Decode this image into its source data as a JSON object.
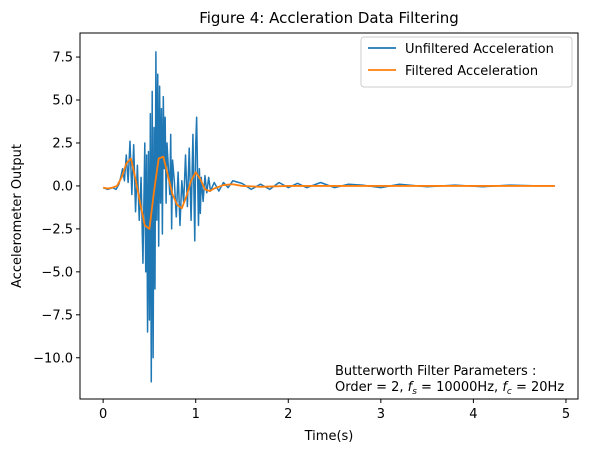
{
  "chart_data": {
    "type": "line",
    "title": "Figure 4: Accleration Data Filtering",
    "xlabel": "Time(s)",
    "ylabel": "Accelerometer Output",
    "xlim": [
      -0.25,
      5.13
    ],
    "ylim": [
      -12.4,
      8.9
    ],
    "xticks": [
      0,
      1,
      2,
      3,
      4,
      5
    ],
    "xtick_labels": [
      "0",
      "1",
      "2",
      "3",
      "4",
      "5"
    ],
    "yticks": [
      7.5,
      5.0,
      2.5,
      0.0,
      -2.5,
      -5.0,
      -7.5,
      -10.0
    ],
    "ytick_labels": [
      "7.5",
      "5.0",
      "2.5",
      "0.0",
      "−2.5",
      "−5.0",
      "−7.5",
      "−10.0"
    ],
    "grid": false,
    "legend_position": "top-right",
    "series": [
      {
        "name": "Unfiltered Acceleration",
        "color": "#1f77b4",
        "x": [
          0.0,
          0.05,
          0.1,
          0.14,
          0.17,
          0.19,
          0.21,
          0.23,
          0.25,
          0.27,
          0.29,
          0.31,
          0.33,
          0.35,
          0.37,
          0.39,
          0.41,
          0.43,
          0.45,
          0.46,
          0.47,
          0.48,
          0.49,
          0.5,
          0.51,
          0.52,
          0.53,
          0.54,
          0.55,
          0.56,
          0.57,
          0.58,
          0.59,
          0.6,
          0.61,
          0.62,
          0.63,
          0.64,
          0.65,
          0.66,
          0.67,
          0.68,
          0.69,
          0.7,
          0.71,
          0.72,
          0.73,
          0.74,
          0.75,
          0.77,
          0.79,
          0.81,
          0.83,
          0.85,
          0.87,
          0.89,
          0.91,
          0.93,
          0.95,
          0.97,
          0.99,
          1.0,
          1.01,
          1.02,
          1.03,
          1.04,
          1.05,
          1.06,
          1.08,
          1.1,
          1.12,
          1.14,
          1.16,
          1.2,
          1.25,
          1.3,
          1.35,
          1.4,
          1.5,
          1.6,
          1.7,
          1.8,
          1.9,
          2.0,
          2.1,
          2.2,
          2.35,
          2.5,
          2.65,
          2.8,
          3.0,
          3.2,
          3.5,
          3.8,
          4.1,
          4.4,
          4.7,
          4.88
        ],
        "y": [
          -0.1,
          -0.2,
          -0.1,
          -0.2,
          0.1,
          0.5,
          1.0,
          0.3,
          1.8,
          0.2,
          2.6,
          -0.5,
          2.4,
          -1.5,
          1.2,
          -2.0,
          0.5,
          -4.5,
          2.5,
          -5.0,
          1.8,
          -8.5,
          2.0,
          -7.8,
          4.2,
          -11.4,
          5.5,
          -10.0,
          3.4,
          -6.0,
          7.8,
          -2.0,
          6.5,
          -3.5,
          5.8,
          -1.0,
          4.5,
          -2.8,
          5.2,
          1.0,
          4.0,
          -1.0,
          2.5,
          1.5,
          0.5,
          -0.5,
          3.0,
          -2.5,
          1.5,
          0.2,
          -1.8,
          0.8,
          -2.3,
          0.3,
          -1.0,
          1.8,
          -1.2,
          2.2,
          -2.0,
          3.0,
          -3.2,
          2.4,
          4.0,
          0.8,
          -2.3,
          1.0,
          -1.6,
          0.5,
          -0.9,
          0.6,
          -0.4,
          0.5,
          -0.3,
          0.2,
          -0.3,
          0.2,
          -0.1,
          0.3,
          0.15,
          -0.2,
          0.1,
          -0.2,
          0.2,
          -0.1,
          0.15,
          -0.1,
          0.2,
          -0.1,
          0.1,
          0.05,
          -0.1,
          0.1,
          -0.05,
          0.05,
          -0.05,
          0.05,
          0.0,
          0.0
        ]
      },
      {
        "name": "Filtered Acceleration",
        "color": "#ff7f0e",
        "x": [
          0.0,
          0.05,
          0.1,
          0.15,
          0.2,
          0.25,
          0.3,
          0.35,
          0.4,
          0.45,
          0.5,
          0.55,
          0.6,
          0.65,
          0.7,
          0.75,
          0.8,
          0.85,
          0.9,
          0.95,
          1.0,
          1.05,
          1.1,
          1.15,
          1.2,
          1.3,
          1.4,
          1.5,
          1.7,
          2.0,
          3.0,
          4.0,
          4.88
        ],
        "y": [
          -0.1,
          -0.15,
          -0.1,
          0.0,
          0.5,
          1.3,
          1.6,
          0.4,
          -1.0,
          -2.3,
          -2.5,
          -0.3,
          1.6,
          1.7,
          0.6,
          -0.5,
          -1.1,
          -1.3,
          -0.6,
          0.3,
          0.8,
          0.4,
          -0.2,
          -0.3,
          -0.15,
          0.05,
          0.1,
          0.0,
          -0.05,
          0.0,
          0.0,
          0.0,
          0.0
        ]
      }
    ],
    "annotation": {
      "line1": "Butterworth Filter Parameters :",
      "line2_prefix": "Order = 2, ",
      "fs_symbol": "f",
      "fs_sub": "s",
      "fs_value": " = 10000Hz, ",
      "fc_symbol": "f",
      "fc_sub": "c",
      "fc_value": " = 20Hz"
    }
  }
}
